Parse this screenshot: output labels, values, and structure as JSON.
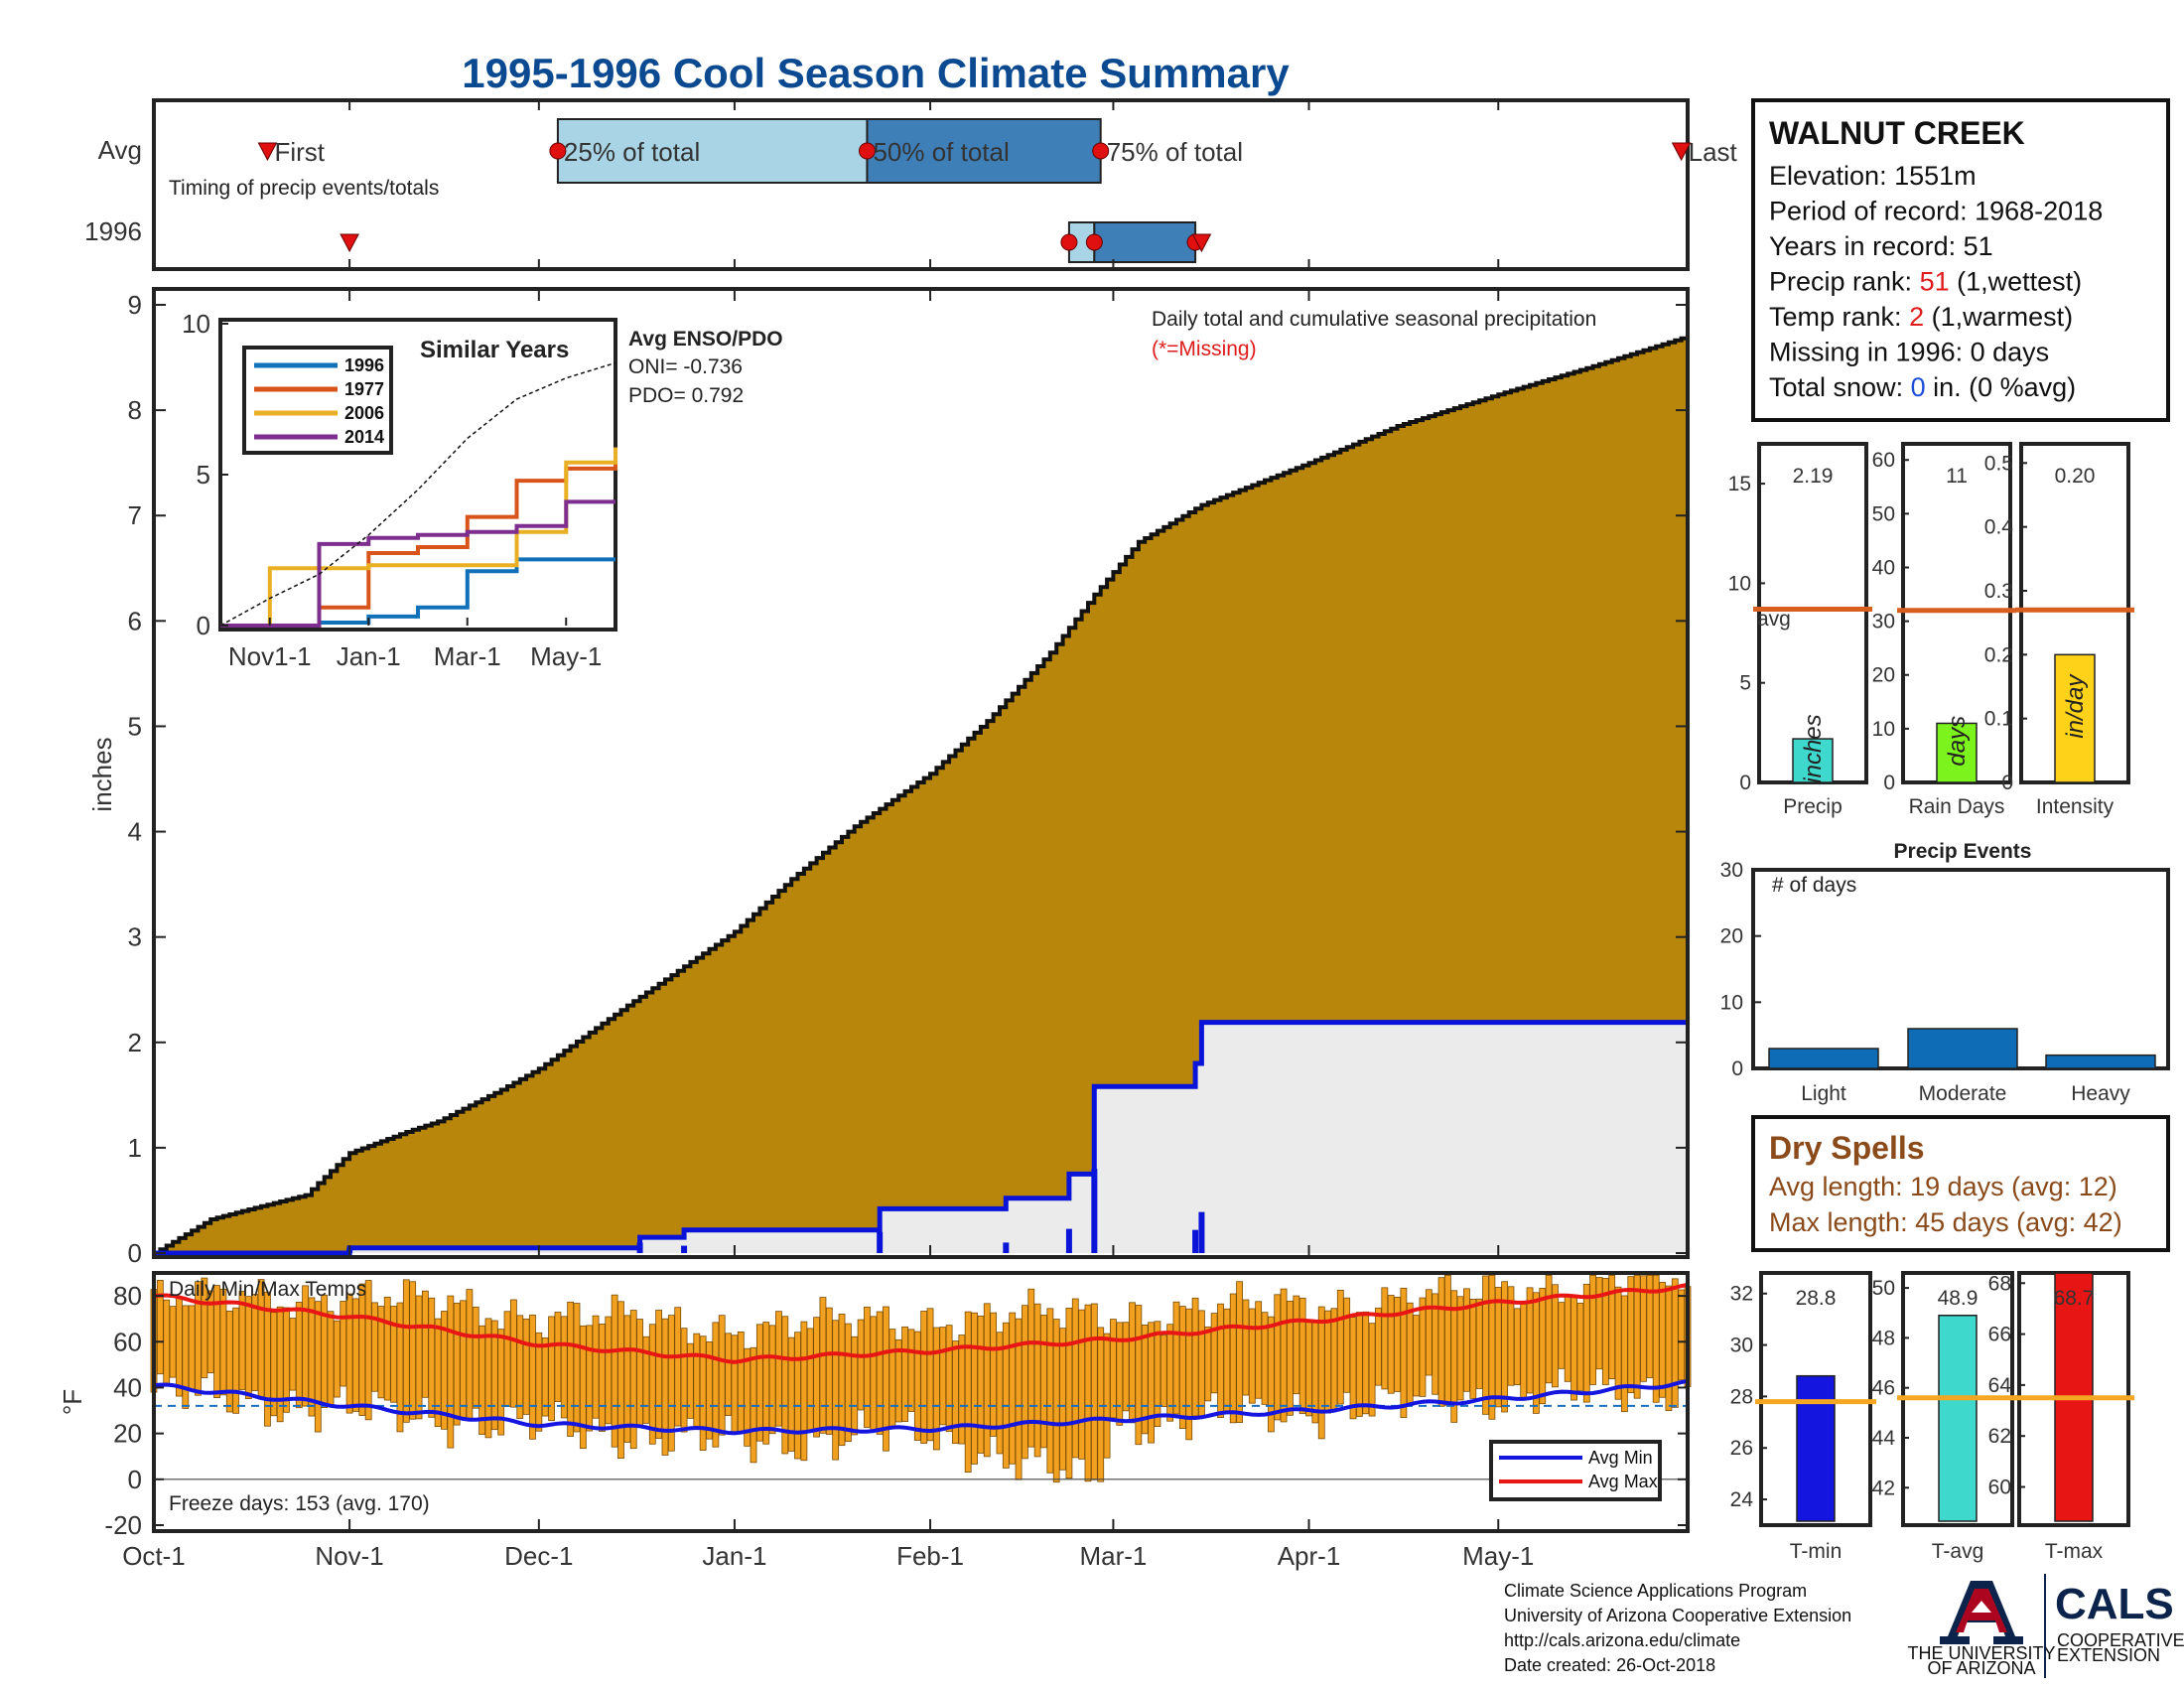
{
  "title": "1995-1996 Cool Season Climate Summary",
  "timing": {
    "row_labels": [
      "Avg",
      "1996"
    ],
    "note": "Timing of precip events/totals",
    "labels": {
      "first": "First",
      "p25": "25% of total",
      "p50": "50% of total",
      "p75": "75% of total",
      "last": "Last"
    },
    "avg": {
      "first": "1995-10-19",
      "p25": "1995-12-04",
      "p50": "1996-01-22",
      "p75": "1996-02-28",
      "last": "1996-05-30"
    },
    "year": {
      "first": "1995-11-01",
      "p25": "1996-02-23",
      "p50": "1996-02-27",
      "p75": "1996-03-14",
      "last": "1996-03-15"
    }
  },
  "station": {
    "name": "WALNUT CREEK",
    "lines": [
      {
        "label": "Elevation: ",
        "value": "1551m",
        "suffix": ""
      },
      {
        "label": "Period of record: ",
        "value": "1968-2018",
        "suffix": ""
      },
      {
        "label": "Years in record: ",
        "value": "51",
        "suffix": ""
      },
      {
        "label": "Precip rank: ",
        "value": "51",
        "suffix": " (1,wettest)",
        "value_color": "red"
      },
      {
        "label": "Temp rank: ",
        "value": "2",
        "suffix": " (1,warmest)",
        "value_color": "red"
      },
      {
        "label": "Missing in 1996: ",
        "value": "0 days",
        "suffix": ""
      },
      {
        "label": "Total snow: ",
        "value": "0",
        "suffix": " in. (0 %avg)",
        "value_color": "blue"
      }
    ]
  },
  "precip_chart": {
    "ylabel": "inches",
    "annotation": "Daily total and cumulative seasonal precipitation",
    "missing_note": "(*=Missing)",
    "y_ticks": [
      0,
      1,
      2,
      3,
      4,
      5,
      6,
      7,
      8,
      9
    ],
    "x_ticks": [
      "Oct-1",
      "Nov-1",
      "Dec-1",
      "Jan-1",
      "Feb-1",
      "Mar-1",
      "Apr-1",
      "May-1"
    ]
  },
  "inset": {
    "title": "Similar Years",
    "enso_title": "Avg ENSO/PDO",
    "oni": "ONI= -0.736",
    "pdo": "PDO= 0.792",
    "y_ticks": [
      0,
      5,
      10
    ],
    "x_ticks": [
      "Nov1-1",
      "Jan-1",
      "Mar-1",
      "May-1"
    ],
    "legend": [
      "1996",
      "1977",
      "2006",
      "2014"
    ]
  },
  "summary_bars": {
    "avg_label": "avg",
    "panels": [
      {
        "name": "Precip",
        "value_label": "2.19",
        "unit": "inches",
        "y_ticks": [
          0,
          5,
          10,
          15
        ]
      },
      {
        "name": "Rain Days",
        "value_label": "11",
        "unit": "days",
        "y_ticks": [
          0,
          10,
          20,
          30,
          40,
          50,
          60
        ]
      },
      {
        "name": "Intensity",
        "value_label": "0.20",
        "unit": "in/day",
        "y_ticks": [
          0,
          0.1,
          0.2,
          0.3,
          0.4,
          0.5
        ]
      }
    ]
  },
  "events": {
    "title": "Precip Events",
    "ylabel": "# of days",
    "y_ticks": [
      0,
      10,
      20,
      30
    ],
    "categories": [
      "Light",
      "Moderate",
      "Heavy"
    ]
  },
  "dry_spells": {
    "title": "Dry Spells",
    "avg_length": "Avg length: 19 days (avg: 12)",
    "max_length": "Max length: 45 days (avg: 42)"
  },
  "temp_chart": {
    "title": "Daily Min/Max Temps",
    "ylabel": "°F",
    "freeze": "Freeze days: 153 (avg. 170)",
    "y_ticks": [
      -20,
      0,
      20,
      40,
      60,
      80
    ],
    "legend": [
      "Avg Min",
      "Avg Max"
    ]
  },
  "temp_bars": {
    "panels": [
      {
        "name": "T-min",
        "value_label": "28.8",
        "y_ticks": [
          24,
          26,
          28,
          30,
          32
        ]
      },
      {
        "name": "T-avg",
        "value_label": "48.9",
        "y_ticks": [
          42,
          44,
          46,
          48,
          50
        ]
      },
      {
        "name": "T-max",
        "value_label": "68.7",
        "y_ticks": [
          60,
          62,
          64,
          66,
          68
        ]
      }
    ]
  },
  "footer": {
    "lines": [
      "Climate Science Applications Program",
      "University of Arizona Cooperative Extension",
      "http://cals.arizona.edu/climate",
      " Date created: 26-Oct-2018"
    ],
    "ua_line1": "THE UNIVERSITY",
    "ua_line2": "OF ARIZONA",
    "cals": "CALS",
    "coop1": "COOPERATIVE",
    "coop2": "EXTENSION"
  },
  "colors": {
    "avg_cumulative": "#b8860b",
    "year_fill": "#ebebeb",
    "year_line": "#0a14d8",
    "temp_bar": "#f2a01f",
    "avg_min": "#1515e0",
    "avg_max": "#e81515",
    "avg_line": "#d95f1e",
    "precip_bar": "#3fd8cc",
    "raindays_bar": "#7cf31c",
    "intensity_bar": "#ffd21a",
    "event_bar": "#0e6bb5",
    "timing_light": "#a8d4e6",
    "timing_dark": "#3f7fb8",
    "s1996": "#1070b8",
    "s1977": "#d9541a",
    "s2006": "#eab024",
    "s2014": "#7e2e8e"
  },
  "chart_data": [
    {
      "type": "area",
      "name": "cumulative seasonal precipitation",
      "x_unit": "date",
      "xlim": [
        "1995-10-01",
        "1996-05-31"
      ],
      "ylim": [
        0,
        9
      ],
      "series": [
        {
          "name": "avg",
          "x": [
            "1995-10-01",
            "1995-10-10",
            "1995-10-15",
            "1995-10-25",
            "1995-11-01",
            "1995-11-10",
            "1995-11-15",
            "1995-11-25",
            "1995-12-01",
            "1995-12-15",
            "1996-01-01",
            "1996-01-10",
            "1996-01-20",
            "1996-02-01",
            "1996-02-10",
            "1996-02-20",
            "1996-02-27",
            "1996-03-05",
            "1996-03-15",
            "1996-04-01",
            "1996-04-15",
            "1996-05-01",
            "1996-05-15",
            "1996-05-31"
          ],
          "y": [
            0,
            0.32,
            0.4,
            0.55,
            0.95,
            1.15,
            1.25,
            1.55,
            1.75,
            2.35,
            3.05,
            3.55,
            4.05,
            4.55,
            5.05,
            5.7,
            6.25,
            6.75,
            7.1,
            7.5,
            7.85,
            8.15,
            8.4,
            8.7
          ]
        },
        {
          "name": "1996",
          "x": [
            "1995-10-01",
            "1995-11-01",
            "1995-12-01",
            "1995-12-17",
            "1995-12-24",
            "1996-01-24",
            "1996-02-13",
            "1996-02-23",
            "1996-02-27",
            "1996-03-14",
            "1996-03-15",
            "1996-05-31"
          ],
          "y": [
            0,
            0.05,
            0.05,
            0.15,
            0.22,
            0.42,
            0.52,
            0.75,
            1.58,
            1.8,
            2.19,
            2.19
          ]
        }
      ]
    },
    {
      "type": "line",
      "name": "Similar Years",
      "ylim": [
        0,
        10
      ],
      "x_unit": "month",
      "series": [
        {
          "name": "1996",
          "x": [
            10,
            11,
            12,
            1,
            2,
            3,
            4,
            5,
            6
          ],
          "y": [
            0,
            0,
            0.1,
            0.3,
            0.6,
            1.8,
            2.19,
            2.19,
            2.19
          ]
        },
        {
          "name": "1977",
          "x": [
            10,
            11,
            12,
            1,
            2,
            3,
            4,
            5,
            6
          ],
          "y": [
            0,
            0,
            0.6,
            2.4,
            2.6,
            3.6,
            4.8,
            5.2,
            5.9
          ]
        },
        {
          "name": "2006",
          "x": [
            10,
            11,
            12,
            1,
            2,
            3,
            4,
            5,
            6
          ],
          "y": [
            0,
            1.9,
            1.9,
            2.0,
            2.0,
            2.0,
            3.1,
            5.4,
            5.9
          ]
        },
        {
          "name": "2014",
          "x": [
            10,
            11,
            12,
            1,
            2,
            3,
            4,
            5,
            6
          ],
          "y": [
            0,
            0,
            2.7,
            2.9,
            3.0,
            3.1,
            3.3,
            4.1,
            4.1
          ]
        },
        {
          "name": "avg",
          "x": [
            10,
            11,
            12,
            1,
            2,
            3,
            4,
            5,
            6
          ],
          "y": [
            0,
            0.9,
            1.7,
            3.0,
            4.5,
            6.2,
            7.5,
            8.2,
            8.7
          ]
        }
      ]
    },
    {
      "type": "bar",
      "name": "season totals",
      "categories": [
        "Precip",
        "Rain Days",
        "Intensity"
      ],
      "values": [
        2.19,
        11,
        0.2
      ],
      "avg": [
        8.7,
        32,
        0.27
      ],
      "units": [
        "inches",
        "days",
        "in/day"
      ],
      "ylims": [
        [
          0,
          17
        ],
        [
          0,
          63
        ],
        [
          0,
          0.53
        ]
      ]
    },
    {
      "type": "bar",
      "name": "Precip Events",
      "categories": [
        "Light",
        "Moderate",
        "Heavy"
      ],
      "values": [
        3,
        6,
        2
      ],
      "ylim": [
        0,
        30
      ]
    },
    {
      "type": "bar",
      "name": "Daily Min/Max Temps",
      "x_unit": "date",
      "xlim": [
        "1995-10-01",
        "1996-05-31"
      ],
      "ylim": [
        -20,
        90
      ],
      "freeze_line": 32,
      "avg_min": {
        "x": [
          "1995-10-01",
          "1995-11-01",
          "1995-12-01",
          "1996-01-01",
          "1996-02-01",
          "1996-03-01",
          "1996-04-01",
          "1996-05-01",
          "1996-05-31"
        ],
        "y": [
          41,
          32,
          24,
          21,
          22,
          26,
          30,
          35,
          42
        ]
      },
      "avg_max": {
        "x": [
          "1995-10-01",
          "1995-11-01",
          "1995-12-01",
          "1996-01-01",
          "1996-02-01",
          "1996-03-01",
          "1996-04-01",
          "1996-05-01",
          "1996-05-31"
        ],
        "y": [
          80,
          71,
          59,
          52,
          56,
          61,
          69,
          77,
          84
        ]
      },
      "daily_min_anchor_x": [
        "1995-10-01",
        "1995-11-01",
        "1995-12-01",
        "1996-01-01",
        "1996-02-01",
        "1996-02-27",
        "1996-03-01",
        "1996-04-01",
        "1996-05-01",
        "1996-05-31"
      ],
      "daily_min_anchor_y": [
        38,
        30,
        23,
        16,
        20,
        -2,
        24,
        30,
        36,
        40
      ],
      "daily_max_anchor_x": [
        "1995-10-01",
        "1995-11-01",
        "1995-12-01",
        "1996-01-01",
        "1996-02-01",
        "1996-03-01",
        "1996-04-01",
        "1996-05-01",
        "1996-05-20",
        "1996-05-31"
      ],
      "daily_max_anchor_y": [
        78,
        80,
        72,
        66,
        70,
        72,
        76,
        82,
        88,
        85
      ]
    },
    {
      "type": "bar",
      "name": "season temperatures",
      "categories": [
        "T-min",
        "T-avg",
        "T-max"
      ],
      "values": [
        28.8,
        48.9,
        68.7
      ],
      "avg": [
        27.8,
        45.6,
        63.5
      ],
      "ylims": [
        [
          23,
          32.8
        ],
        [
          40.5,
          50.6
        ],
        [
          58.5,
          68.4
        ]
      ]
    }
  ]
}
